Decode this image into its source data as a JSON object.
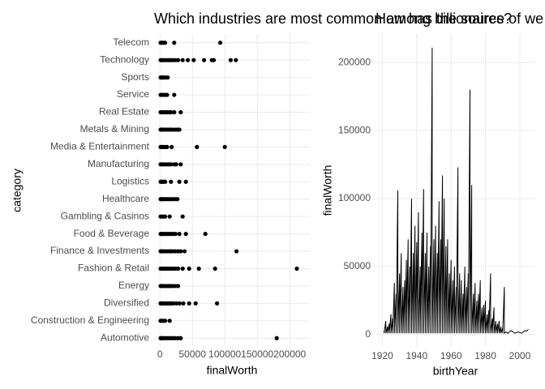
{
  "chart_data": [
    {
      "type": "scatter",
      "title": "Which industries are most common among billionaires?",
      "x_label": "finalWorth",
      "y_label": "category",
      "color": "#000000",
      "grid": true,
      "categories": [
        "Automotive",
        "Construction & Engineering",
        "Diversified",
        "Energy",
        "Fashion & Retail",
        "Finance & Investments",
        "Food & Beverage",
        "Gambling & Casinos",
        "Healthcare",
        "Logistics",
        "Manufacturing",
        "Media & Entertainment",
        "Metals & Mining",
        "Real Estate",
        "Service",
        "Sports",
        "Technology",
        "Telecom"
      ],
      "values": [
        [
          1000,
          3000,
          5000,
          8000,
          11000,
          14000,
          17000,
          20000,
          24000,
          28000,
          32000,
          180000
        ],
        [
          1000,
          3000,
          5000,
          8000,
          15000
        ],
        [
          1000,
          3000,
          5000,
          8000,
          11000,
          14000,
          17000,
          20000,
          25000,
          30000,
          36000,
          45000,
          55000,
          88000
        ],
        [
          1000,
          3000,
          5000,
          8000,
          11000,
          14000,
          17000,
          20000,
          24000,
          28000
        ],
        [
          1000,
          3000,
          5000,
          8000,
          11000,
          14000,
          17000,
          20000,
          24000,
          28000,
          35000,
          45000,
          60000,
          85000,
          211000
        ],
        [
          1000,
          3000,
          5000,
          8000,
          11000,
          14000,
          17000,
          20000,
          24000,
          28000,
          32000,
          38000,
          118000
        ],
        [
          1000,
          3000,
          5000,
          8000,
          11000,
          14000,
          17000,
          20000,
          24000,
          30000,
          40000,
          70000
        ],
        [
          1000,
          3000,
          5000,
          8000,
          15000,
          35000
        ],
        [
          1000,
          3000,
          5000,
          8000,
          11000,
          14000,
          17000,
          20000,
          24000,
          27000
        ],
        [
          1000,
          3000,
          5000,
          8000,
          17000,
          30000,
          40000
        ],
        [
          1000,
          3000,
          5000,
          8000,
          11000,
          14000,
          17000,
          22000,
          25000,
          32000
        ],
        [
          1000,
          3000,
          5000,
          8000,
          11000,
          18000,
          57000,
          100000
        ],
        [
          1000,
          3000,
          5000,
          8000,
          11000,
          14000,
          17000,
          20000,
          24000,
          27000,
          30000
        ],
        [
          1000,
          3000,
          5000,
          8000,
          11000,
          14000,
          17000,
          22000,
          32000
        ],
        [
          1000,
          3000,
          5000,
          8000,
          11000,
          22000
        ],
        [
          1000,
          3000,
          5000,
          8000,
          12000
        ],
        [
          1000,
          3000,
          5000,
          8000,
          11000,
          14000,
          17000,
          20000,
          24000,
          28000,
          35000,
          43000,
          52000,
          68000,
          80000,
          83000,
          109000,
          117000
        ],
        [
          1000,
          3000,
          5000,
          8000,
          22000,
          93000
        ]
      ],
      "xlim": [
        -9000,
        231000
      ],
      "xticks": [
        0,
        50000,
        100000,
        150000,
        200000
      ]
    },
    {
      "type": "line",
      "title": "How has the source of we",
      "x_label": "birthYear",
      "y_label": "finalWorth",
      "color": "#000000",
      "grid": true,
      "x": [
        1921,
        1921,
        1922,
        1922,
        1923,
        1923,
        1924,
        1924,
        1925,
        1925,
        1926,
        1926,
        1927,
        1927,
        1928,
        1928,
        1929,
        1929,
        1930,
        1930,
        1931,
        1931,
        1932,
        1932,
        1933,
        1933,
        1934,
        1934,
        1935,
        1935,
        1936,
        1936,
        1937,
        1937,
        1938,
        1938,
        1939,
        1939,
        1940,
        1940,
        1941,
        1941,
        1942,
        1942,
        1943,
        1943,
        1944,
        1944,
        1945,
        1945,
        1946,
        1946,
        1947,
        1947,
        1948,
        1948,
        1949,
        1949,
        1950,
        1950,
        1951,
        1951,
        1952,
        1952,
        1953,
        1953,
        1954,
        1954,
        1955,
        1955,
        1956,
        1956,
        1957,
        1957,
        1958,
        1958,
        1959,
        1959,
        1960,
        1960,
        1961,
        1961,
        1962,
        1962,
        1963,
        1963,
        1964,
        1964,
        1965,
        1965,
        1966,
        1966,
        1967,
        1967,
        1968,
        1968,
        1969,
        1969,
        1970,
        1970,
        1971,
        1971,
        1972,
        1972,
        1973,
        1973,
        1974,
        1974,
        1975,
        1975,
        1976,
        1976,
        1977,
        1977,
        1978,
        1978,
        1979,
        1979,
        1980,
        1980,
        1981,
        1981,
        1982,
        1982,
        1983,
        1983,
        1984,
        1984,
        1985,
        1985,
        1986,
        1986,
        1987,
        1987,
        1988,
        1988,
        1989,
        1989,
        1990,
        1990,
        1991,
        1991,
        1992,
        1993,
        1995,
        1997,
        1999,
        2001,
        2003,
        2004,
        2005
      ],
      "values": [
        3000,
        1000,
        10000,
        1000,
        6000,
        1000,
        8000,
        1000,
        15000,
        1000,
        12000,
        1000,
        38000,
        1000,
        30000,
        1000,
        106000,
        1000,
        45000,
        1000,
        60000,
        1000,
        35000,
        1000,
        40000,
        1000,
        55000,
        1000,
        70000,
        1000,
        50000,
        1000,
        100000,
        1000,
        60000,
        1000,
        80000,
        1000,
        68000,
        1000,
        90000,
        1000,
        50000,
        1000,
        75000,
        1000,
        107000,
        1000,
        60000,
        1000,
        75000,
        1000,
        50000,
        1000,
        65000,
        1000,
        211000,
        1000,
        70000,
        1000,
        80000,
        1000,
        60000,
        1000,
        98000,
        1000,
        70000,
        1000,
        117000,
        1000,
        100000,
        1000,
        65000,
        1000,
        70000,
        1000,
        45000,
        1000,
        55000,
        1000,
        40000,
        1000,
        50000,
        1000,
        35000,
        1000,
        123000,
        1000,
        45000,
        1000,
        40000,
        1000,
        30000,
        1000,
        50000,
        1000,
        35000,
        1000,
        45000,
        1000,
        180000,
        1000,
        110000,
        1000,
        30000,
        1000,
        38000,
        1000,
        25000,
        1000,
        30000,
        1000,
        40000,
        1000,
        20000,
        1000,
        22000,
        1000,
        25000,
        1000,
        15000,
        1000,
        18000,
        1000,
        45000,
        1000,
        12000,
        1000,
        20000,
        1000,
        10000,
        1000,
        8000,
        1000,
        10000,
        1000,
        6000,
        1000,
        5000,
        1000,
        35000,
        1000,
        2000,
        1000,
        3000,
        1000,
        2000,
        1000,
        3000,
        2500,
        4000
      ],
      "xlim": [
        1916,
        2009
      ],
      "xticks": [
        1920,
        1940,
        1960,
        1980,
        2000
      ],
      "ylim": [
        -9000,
        221000
      ],
      "yticks": [
        0,
        50000,
        100000,
        150000,
        200000
      ]
    }
  ]
}
